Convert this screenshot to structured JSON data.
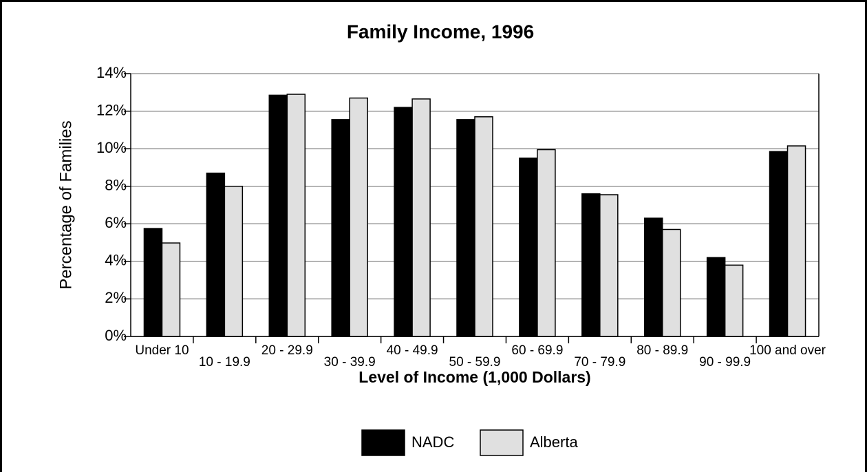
{
  "chart_data": {
    "type": "bar",
    "title": "Family Income, 1996",
    "x_label": "Level of Income (1,000 Dollars)",
    "y_label": "Percentage of Families",
    "categories": [
      "Under 10",
      "10 - 19.9",
      "20 - 29.9",
      "30 - 39.9",
      "40 - 49.9",
      "50 - 59.9",
      "60 - 69.9",
      "70 - 79.9",
      "80 - 89.9",
      "90 - 99.9",
      "100 and over"
    ],
    "series": [
      {
        "name": "NADC",
        "color": "#000000",
        "values": [
          5.75,
          8.7,
          12.85,
          11.55,
          12.2,
          11.55,
          9.5,
          7.6,
          6.3,
          4.2,
          9.85
        ]
      },
      {
        "name": "Alberta",
        "color": "#e0e0e0",
        "values": [
          4.98,
          8.0,
          12.9,
          12.7,
          12.65,
          11.7,
          9.95,
          7.55,
          5.7,
          3.8,
          10.15
        ]
      }
    ],
    "ylim": [
      0,
      14
    ],
    "yticks": [
      {
        "value": 0,
        "label": "0%"
      },
      {
        "value": 2,
        "label": "2%"
      },
      {
        "value": 4,
        "label": "4%"
      },
      {
        "value": 6,
        "label": "6%"
      },
      {
        "value": 8,
        "label": "8%"
      },
      {
        "value": 10,
        "label": "10%"
      },
      {
        "value": 12,
        "label": "12%"
      },
      {
        "value": 14,
        "label": "14%"
      }
    ],
    "grid": true,
    "legend": "bottom"
  }
}
